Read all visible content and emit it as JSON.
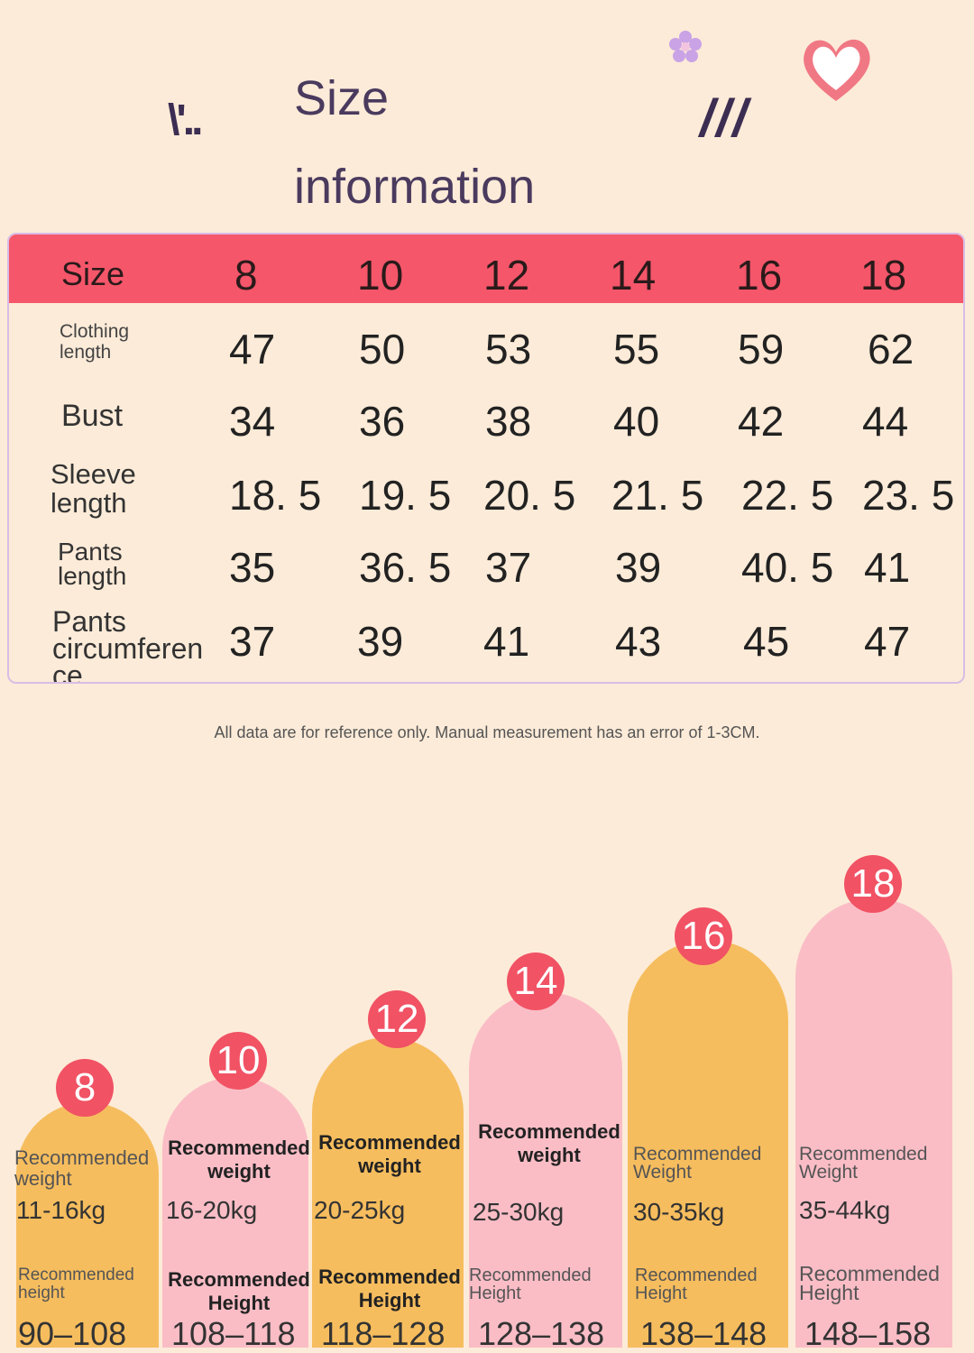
{
  "title": {
    "line1": "Size",
    "line2": "information"
  },
  "decor": {
    "left_marks": "\\'..",
    "right_marks": "///"
  },
  "table": {
    "header_label": "Size",
    "sizes": [
      "8",
      "10",
      "12",
      "14",
      "16",
      "18"
    ],
    "rows": [
      {
        "label": "Clothing\nlength",
        "values": [
          "47",
          "50",
          "53",
          "55",
          "59",
          "62"
        ]
      },
      {
        "label": "Bust",
        "values": [
          "34",
          "36",
          "38",
          "40",
          "42",
          "44"
        ]
      },
      {
        "label": "Sleeve\nlength",
        "values": [
          "18. 5",
          "19. 5",
          "20. 5",
          "21. 5",
          "22. 5",
          "23. 5"
        ]
      },
      {
        "label": "Pants\nlength",
        "values": [
          "35",
          "36. 5",
          "37",
          "39",
          "40. 5",
          "41"
        ]
      },
      {
        "label": "Pants\ncircumferen\nce",
        "values": [
          "37",
          "39",
          "41",
          "43",
          "45",
          "47"
        ]
      }
    ]
  },
  "note": "All data are for reference only. Manual measurement has an error of 1-3CM.",
  "recommendations": [
    {
      "size": "8",
      "weight_label": "Recommended\nweight",
      "weight": "11-16kg",
      "height_label": "Recommended\nheight",
      "height": "90–108",
      "color": "#f6bd5e"
    },
    {
      "size": "10",
      "weight_label": "Recommended\nweight",
      "weight": "16-20kg",
      "height_label": "Recommended\nHeight",
      "height": "108–118",
      "color": "#fabdc6"
    },
    {
      "size": "12",
      "weight_label": "Recommended\nweight",
      "weight": "20-25kg",
      "height_label": "Recommended\nHeight",
      "height": "118–128",
      "color": "#f6bd5e"
    },
    {
      "size": "14",
      "weight_label": "Recommended\nweight",
      "weight": "25-30kg",
      "height_label": "Recommended\nHeight",
      "height": "128–138",
      "color": "#fabdc6"
    },
    {
      "size": "16",
      "weight_label": "Recommended\nWeight",
      "weight": "30-35kg",
      "height_label": "Recommended\nHeight",
      "height": "138–148",
      "color": "#f6bd5e"
    },
    {
      "size": "18",
      "weight_label": "Recommended\nWeight",
      "weight": "35-44kg",
      "height_label": "Recommended\nHeight",
      "height": "148–158",
      "color": "#fabdc6"
    }
  ],
  "icons": {
    "flower": "flower-icon",
    "heart": "heart-icon"
  }
}
